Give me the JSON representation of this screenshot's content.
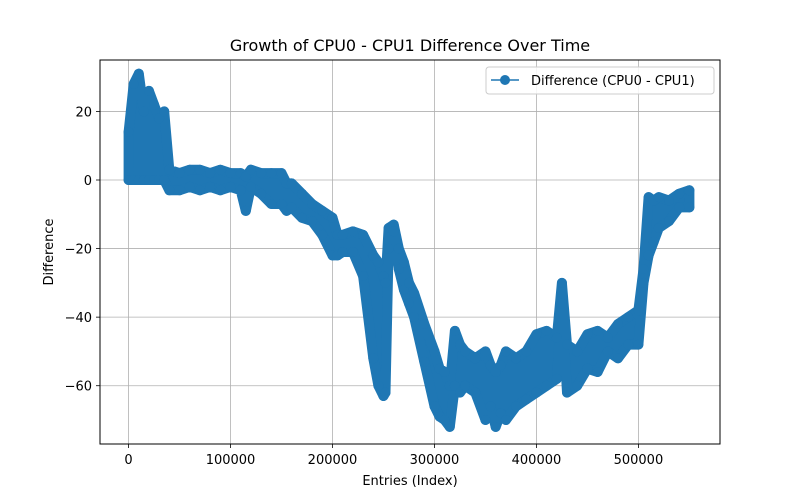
{
  "chart_data": {
    "type": "line",
    "title": "Growth of CPU0 - CPU1 Difference Over Time",
    "xlabel": "Entries (Index)",
    "ylabel": "Difference",
    "xlim": [
      -28000,
      580000
    ],
    "ylim": [
      -77,
      35
    ],
    "grid": true,
    "legend_position": "top-right",
    "xticks": [
      0,
      100000,
      200000,
      300000,
      400000,
      500000
    ],
    "xtick_labels": [
      "0",
      "100000",
      "200000",
      "300000",
      "400000",
      "500000"
    ],
    "yticks": [
      20,
      0,
      -20,
      -40,
      -60
    ],
    "ytick_labels": [
      "20",
      "0",
      "−20",
      "−40",
      "−60"
    ],
    "colors": {
      "series": "#1f77b4",
      "grid": "#b0b0b0"
    },
    "series": [
      {
        "name": "Difference (CPU0 - CPU1)",
        "marker": "o",
        "x": [
          0,
          5000,
          10000,
          15000,
          20000,
          25000,
          30000,
          35000,
          40000,
          50000,
          60000,
          70000,
          80000,
          90000,
          100000,
          110000,
          115000,
          120000,
          130000,
          140000,
          150000,
          155000,
          160000,
          170000,
          180000,
          190000,
          200000,
          205000,
          210000,
          220000,
          230000,
          240000,
          245000,
          250000,
          252000,
          255000,
          260000,
          265000,
          270000,
          275000,
          280000,
          290000,
          300000,
          305000,
          310000,
          315000,
          320000,
          325000,
          330000,
          340000,
          350000,
          355000,
          360000,
          365000,
          370000,
          380000,
          390000,
          400000,
          410000,
          420000,
          425000,
          430000,
          440000,
          450000,
          460000,
          470000,
          480000,
          490000,
          500000,
          505000,
          510000,
          515000,
          520000,
          530000,
          540000,
          550000
        ],
        "min": [
          0,
          0,
          0,
          0,
          0,
          0,
          0,
          0,
          -3,
          -3,
          -2,
          -3,
          -2,
          -3,
          -2,
          -3,
          -9,
          -2,
          -4,
          -7,
          -7,
          -9,
          -8,
          -11,
          -12,
          -16,
          -22,
          -22,
          -21,
          -21,
          -28,
          -52,
          -60,
          -63,
          -62,
          -20,
          -15,
          -26,
          -32,
          -36,
          -40,
          -53,
          -66,
          -69,
          -70,
          -72,
          -60,
          -62,
          -60,
          -62,
          -70,
          -66,
          -72,
          -68,
          -70,
          -66,
          -64,
          -62,
          -60,
          -58,
          -36,
          -62,
          -60,
          -55,
          -56,
          -50,
          -52,
          -48,
          -48,
          -30,
          -22,
          -18,
          -14,
          -12,
          -8,
          -8
        ],
        "max": [
          14,
          28,
          31,
          20,
          26,
          22,
          18,
          20,
          3,
          2,
          3,
          3,
          2,
          3,
          2,
          2,
          1,
          3,
          2,
          2,
          2,
          -1,
          -1,
          -4,
          -7,
          -9,
          -11,
          -16,
          -16,
          -15,
          -16,
          -22,
          -24,
          -28,
          -30,
          -14,
          -13,
          -20,
          -24,
          -30,
          -33,
          -42,
          -50,
          -55,
          -56,
          -60,
          -44,
          -48,
          -50,
          -52,
          -50,
          -54,
          -56,
          -54,
          -50,
          -52,
          -50,
          -45,
          -44,
          -46,
          -30,
          -48,
          -50,
          -45,
          -44,
          -46,
          -42,
          -40,
          -38,
          -26,
          -5,
          -6,
          -5,
          -6,
          -4,
          -3
        ]
      }
    ]
  }
}
